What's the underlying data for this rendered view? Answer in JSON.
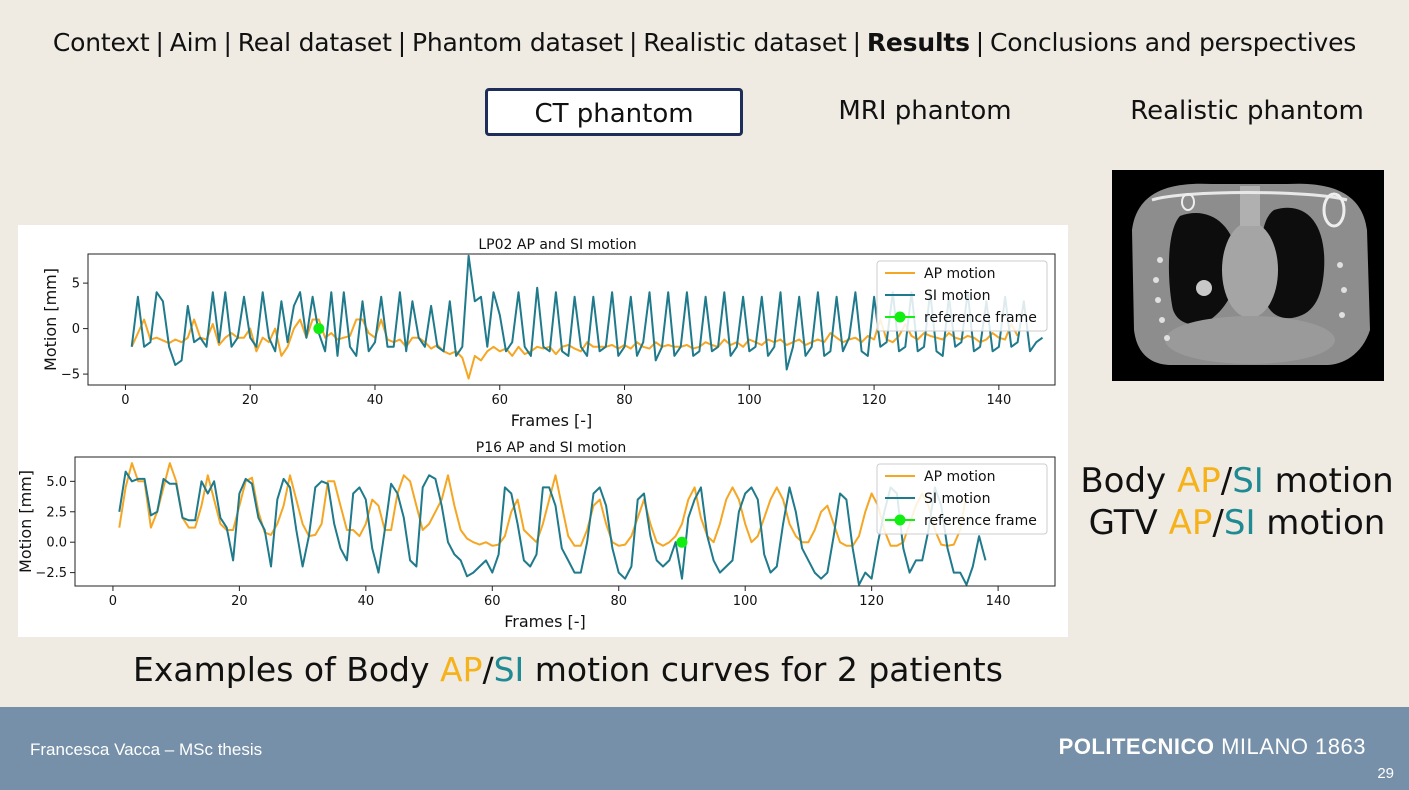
{
  "breadcrumb": {
    "items": [
      "Context",
      "Aim",
      "Real dataset",
      "Phantom dataset",
      "Realistic dataset",
      "Results",
      "Conclusions and perspectives"
    ],
    "separator": "|",
    "active_index": 5
  },
  "tabs": [
    {
      "label": "CT phantom",
      "selected": true
    },
    {
      "label": "MRI phantom",
      "selected": false
    },
    {
      "label": "Realistic phantom",
      "selected": false
    }
  ],
  "colors": {
    "ap": "#f5a623",
    "si": "#1f7a8c",
    "reference": "#11ee11",
    "ap_text": "#f5b21a",
    "si_text": "#1f8a93"
  },
  "ct_image": {
    "description_icon": "ct-coronal-scan-image"
  },
  "motion_labels": {
    "line1": {
      "prefix": "Body ",
      "ap": "AP",
      "slash": "/",
      "si": "SI",
      "suffix": " motion"
    },
    "line2": {
      "prefix": "GTV ",
      "ap": "AP",
      "slash": "/",
      "si": "SI",
      "suffix": " motion"
    }
  },
  "caption": {
    "prefix": "Examples of Body ",
    "ap": "AP",
    "slash": "/",
    "si": "SI",
    "suffix": " motion curves for 2 patients"
  },
  "footer": {
    "author": "Francesca Vacca – MSc thesis",
    "brand_bold": "POLITECNICO",
    "brand_rest": " MILANO 1863",
    "page_number": "29"
  },
  "chart_data": [
    {
      "type": "line",
      "title": "LP02 AP and SI motion",
      "xlabel": "Frames [-]",
      "ylabel": "Motion [mm]",
      "xlim": [
        -6,
        149
      ],
      "ylim": [
        -6.2,
        8.2
      ],
      "xticks": [
        0,
        20,
        40,
        60,
        80,
        100,
        120,
        140
      ],
      "yticks": [
        -5,
        0,
        5
      ],
      "ytick_labels": [
        "−5",
        "0",
        "5"
      ],
      "legend": [
        "AP motion",
        "SI motion",
        "reference frame"
      ],
      "legend_position": "upper right",
      "reference_frame": {
        "x": 31,
        "y": 0
      },
      "x_start": 1,
      "series": [
        {
          "name": "AP motion",
          "values": [
            -2.0,
            -0.5,
            1.0,
            -1.2,
            -1.0,
            -1.3,
            -1.6,
            -1.2,
            -1.5,
            -1.0,
            1.0,
            -1.0,
            -1.2,
            0.5,
            -1.8,
            -1.0,
            -0.5,
            -1.0,
            -1.0,
            0.0,
            -2.5,
            -1.0,
            -1.5,
            0.0,
            -3.0,
            -2.0,
            0.0,
            1.0,
            -1.0,
            1.0,
            1.0,
            -1.0,
            -0.5,
            -1.2,
            -1.0,
            -0.8,
            1.0,
            1.0,
            -0.5,
            -1.0,
            1.0,
            -1.2,
            -1.5,
            -1.2,
            -2.0,
            -1.0,
            -1.0,
            -1.5,
            -2.2,
            -1.8,
            -2.5,
            -2.8,
            -2.5,
            -3.2,
            -5.5,
            -3.0,
            -3.5,
            -2.5,
            -2.0,
            -2.5,
            -2.2,
            -3.0,
            -2.0,
            -2.8,
            -2.5,
            -2.0,
            -2.2,
            -2.0,
            -2.8,
            -2.0,
            -1.8,
            -2.2,
            -2.5,
            -1.5,
            -2.0,
            -2.0,
            -2.0,
            -1.8,
            -2.2,
            -1.8,
            -2.2,
            -1.5,
            -2.0,
            -2.2,
            -1.5,
            -2.0,
            -1.8,
            -2.0,
            -2.0,
            -1.8,
            -2.2,
            -2.0,
            -1.5,
            -1.8,
            -2.0,
            -1.2,
            -1.8,
            -1.5,
            -2.0,
            -1.2,
            -1.5,
            -1.8,
            -1.2,
            -1.5,
            -1.2,
            -1.8,
            -1.5,
            -1.2,
            -1.8,
            -1.5,
            -1.2,
            -1.5,
            -0.5,
            -1.0,
            -1.5,
            -1.2,
            -1.0,
            -1.5,
            -0.8,
            -1.2,
            1.0,
            -1.2,
            -1.5,
            -0.8,
            0.5,
            -0.8,
            -1.2,
            -0.5,
            -0.8,
            -1.0,
            -1.2,
            -0.5,
            -1.0,
            -1.2,
            -0.8,
            -1.0,
            -1.5,
            -1.2,
            -0.5,
            -1.0,
            -1.2,
            0.5,
            -0.8
          ]
        },
        {
          "name": "SI motion",
          "values": [
            -2.0,
            3.5,
            -2.0,
            -1.5,
            4.0,
            3.0,
            -2.0,
            -4.0,
            -3.5,
            2.5,
            -1.5,
            -1.0,
            -2.0,
            4.0,
            -1.5,
            4.0,
            -2.0,
            -1.0,
            3.5,
            -1.0,
            -2.0,
            4.0,
            -1.0,
            -2.5,
            3.0,
            -1.5,
            2.5,
            4.0,
            -1.0,
            3.5,
            -0.5,
            -2.5,
            4.0,
            -3.0,
            4.0,
            -2.0,
            -3.0,
            3.0,
            -2.5,
            -1.5,
            3.5,
            -2.0,
            -2.0,
            4.0,
            -2.5,
            3.0,
            -1.0,
            -2.0,
            2.5,
            -2.0,
            -2.5,
            3.0,
            -3.0,
            -2.0,
            8.0,
            3.0,
            3.5,
            -2.0,
            4.0,
            1.5,
            -2.5,
            -1.5,
            4.0,
            -2.0,
            -3.0,
            4.5,
            -2.0,
            -2.5,
            4.0,
            -2.5,
            -3.0,
            3.5,
            -2.0,
            -3.0,
            3.5,
            -2.5,
            -2.0,
            4.0,
            -3.0,
            -2.0,
            3.5,
            -3.0,
            -1.5,
            4.0,
            -3.5,
            -2.0,
            4.0,
            -3.0,
            -2.0,
            4.0,
            -3.0,
            -2.5,
            3.5,
            -2.5,
            -2.0,
            4.0,
            -3.0,
            -2.0,
            3.5,
            -2.5,
            -2.0,
            3.5,
            -3.0,
            -2.0,
            4.0,
            -4.5,
            -2.0,
            3.5,
            -3.0,
            -2.0,
            4.0,
            -3.0,
            -2.5,
            3.5,
            -2.5,
            -1.0,
            4.0,
            -2.5,
            -3.0,
            3.5,
            -2.0,
            -1.5,
            4.0,
            -2.5,
            -2.0,
            4.0,
            -2.5,
            -2.0,
            4.0,
            -2.5,
            -3.0,
            3.5,
            -2.0,
            -1.5,
            4.0,
            -2.5,
            -2.0,
            3.0,
            -2.5,
            -2.0,
            3.5,
            -2.0,
            -1.5,
            3.0,
            -2.5,
            -1.5,
            -1.0
          ]
        }
      ]
    },
    {
      "type": "line",
      "title": "P16 AP and SI motion",
      "xlabel": "Frames [-]",
      "ylabel": "Motion [mm]",
      "xlim": [
        -6,
        149
      ],
      "ylim": [
        -3.6,
        7.0
      ],
      "xticks": [
        0,
        20,
        40,
        60,
        80,
        100,
        120,
        140
      ],
      "yticks": [
        -2.5,
        0.0,
        2.5,
        5.0
      ],
      "ytick_labels": [
        "−2.5",
        "0.0",
        "2.5",
        "5.0"
      ],
      "legend": [
        "AP motion",
        "SI motion",
        "reference frame"
      ],
      "legend_position": "upper right",
      "reference_frame": {
        "x": 90,
        "y": 0
      },
      "x_start": 1,
      "series": [
        {
          "name": "AP motion",
          "values": [
            1.2,
            4.5,
            6.5,
            5.0,
            5.0,
            1.2,
            2.5,
            4.5,
            6.5,
            5.0,
            2.0,
            1.2,
            1.2,
            3.0,
            5.5,
            3.5,
            1.5,
            1.0,
            1.0,
            3.0,
            5.0,
            5.3,
            2.5,
            0.8,
            0.6,
            1.5,
            3.0,
            5.5,
            3.5,
            1.5,
            0.5,
            0.6,
            1.5,
            5.0,
            5.0,
            3.0,
            1.0,
            1.0,
            0.5,
            1.5,
            3.5,
            3.0,
            1.0,
            1.0,
            4.0,
            5.5,
            5.0,
            3.0,
            1.0,
            1.5,
            2.5,
            3.5,
            5.5,
            3.0,
            1.0,
            0.3,
            0.0,
            -0.2,
            0.0,
            -0.3,
            -0.2,
            0.5,
            2.5,
            3.5,
            1.0,
            0.5,
            0.0,
            1.5,
            3.5,
            5.5,
            3.0,
            0.5,
            -0.3,
            -0.3,
            1.0,
            3.0,
            3.5,
            1.5,
            0.0,
            -0.3,
            -0.2,
            0.5,
            2.0,
            3.5,
            1.5,
            0.0,
            -0.3,
            0.0,
            0.5,
            1.5,
            3.5,
            4.5,
            2.0,
            0.5,
            0.0,
            1.5,
            3.5,
            4.5,
            3.5,
            1.5,
            0.0,
            0.5,
            2.0,
            3.5,
            4.5,
            3.5,
            1.5,
            0.5,
            0.0,
            0.0,
            1.0,
            2.5,
            3.0,
            1.5,
            0.0,
            -0.3,
            -0.3,
            0.5,
            2.5,
            4.0,
            3.0,
            1.0,
            -0.3,
            -0.3,
            0.0,
            1.5,
            3.0,
            4.0,
            3.0,
            1.0,
            -0.2,
            -0.3,
            -0.2,
            1.0,
            4.0
          ]
        },
        {
          "name": "SI motion",
          "values": [
            2.5,
            5.8,
            5.0,
            5.2,
            5.2,
            2.2,
            2.5,
            5.2,
            4.8,
            4.8,
            2.0,
            1.8,
            1.8,
            5.0,
            4.0,
            5.0,
            2.0,
            1.2,
            -1.5,
            4.0,
            5.2,
            4.8,
            2.0,
            1.0,
            -2.0,
            3.5,
            5.2,
            4.5,
            1.0,
            -2.0,
            0.5,
            4.5,
            5.0,
            4.8,
            1.5,
            -0.5,
            -1.5,
            4.0,
            4.5,
            3.5,
            -0.5,
            -2.5,
            1.0,
            4.8,
            4.0,
            2.0,
            -1.5,
            -2.0,
            4.5,
            5.5,
            5.2,
            3.0,
            0.0,
            -1.0,
            -1.5,
            -2.8,
            -2.5,
            -2.0,
            -1.5,
            -2.5,
            -1.0,
            4.5,
            4.0,
            1.5,
            -1.5,
            -2.0,
            -1.0,
            4.5,
            4.5,
            3.0,
            -0.5,
            -1.5,
            -2.5,
            -2.5,
            0.0,
            4.0,
            4.5,
            3.0,
            -0.5,
            -2.5,
            -3.0,
            -2.0,
            3.5,
            4.0,
            0.5,
            -1.5,
            -2.0,
            -1.5,
            0.0,
            -3.0,
            2.0,
            3.5,
            4.5,
            0.5,
            -1.5,
            -2.5,
            -2.0,
            -1.5,
            2.5,
            4.0,
            4.5,
            3.5,
            -1.0,
            -2.5,
            -2.0,
            1.5,
            4.5,
            2.5,
            -0.5,
            -1.5,
            -2.5,
            -3.0,
            -2.5,
            0.5,
            4.0,
            3.5,
            -0.5,
            -3.5,
            -2.5,
            -3.0,
            0.0,
            2.5,
            4.5,
            4.0,
            -0.5,
            -2.5,
            -1.5,
            -1.5,
            1.0,
            4.5,
            3.0,
            -0.5,
            -2.5,
            -2.5,
            -3.5,
            -2.0,
            0.5,
            -1.5
          ]
        }
      ]
    }
  ]
}
